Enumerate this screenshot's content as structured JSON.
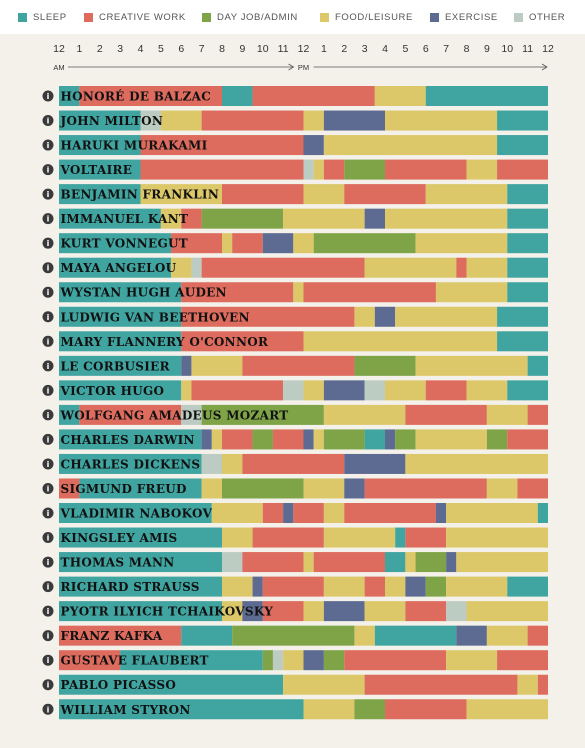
{
  "legend": [
    {
      "key": "sleep",
      "label": "SLEEP",
      "color": "#40a4a0"
    },
    {
      "key": "creative",
      "label": "CREATIVE WORK",
      "color": "#dd6b5e"
    },
    {
      "key": "dayjob",
      "label": "DAY JOB/ADMIN",
      "color": "#7ea447"
    },
    {
      "key": "food",
      "label": "FOOD/LEISURE",
      "color": "#dcc869"
    },
    {
      "key": "exercise",
      "label": "EXERCISE",
      "color": "#5d6a92"
    },
    {
      "key": "other",
      "label": "OTHER",
      "color": "#bcccc3"
    }
  ],
  "axis": {
    "tick_labels": [
      "12",
      "1",
      "2",
      "3",
      "4",
      "5",
      "6",
      "7",
      "8",
      "9",
      "10",
      "11",
      "12",
      "1",
      "2",
      "3",
      "4",
      "5",
      "6",
      "7",
      "8",
      "9",
      "10",
      "11",
      "12"
    ],
    "am_label": "AM",
    "pm_label": "PM"
  },
  "chart_data": {
    "type": "bar",
    "orientation": "horizontal-stacked-timeline",
    "x_unit": "hour of day",
    "xlim": [
      0,
      24
    ],
    "categories": [
      "sleep",
      "creative",
      "dayjob",
      "food",
      "exercise",
      "other"
    ],
    "rows": [
      {
        "name": "HONORÉ DE BALZAC",
        "segments": [
          [
            "sleep",
            0,
            1
          ],
          [
            "creative",
            1,
            8
          ],
          [
            "sleep",
            8,
            9.5
          ],
          [
            "creative",
            9.5,
            15.5
          ],
          [
            "food",
            15.5,
            18
          ],
          [
            "sleep",
            18,
            24
          ]
        ]
      },
      {
        "name": "JOHN MILTON",
        "segments": [
          [
            "sleep",
            0,
            4
          ],
          [
            "other",
            4,
            5
          ],
          [
            "food",
            5,
            7
          ],
          [
            "creative",
            7,
            12
          ],
          [
            "food",
            12,
            13
          ],
          [
            "exercise",
            13,
            16
          ],
          [
            "food",
            16,
            21.5
          ],
          [
            "sleep",
            21.5,
            24
          ]
        ]
      },
      {
        "name": "HARUKI MURAKAMI",
        "segments": [
          [
            "sleep",
            0,
            4
          ],
          [
            "creative",
            4,
            12
          ],
          [
            "exercise",
            12,
            13
          ],
          [
            "food",
            13,
            21.5
          ],
          [
            "sleep",
            21.5,
            24
          ]
        ]
      },
      {
        "name": "VOLTAIRE",
        "segments": [
          [
            "sleep",
            0,
            4
          ],
          [
            "creative",
            4,
            12
          ],
          [
            "other",
            12,
            12.5
          ],
          [
            "food",
            12.5,
            13
          ],
          [
            "creative",
            13,
            14
          ],
          [
            "dayjob",
            14,
            16
          ],
          [
            "creative",
            16,
            20
          ],
          [
            "food",
            20,
            21.5
          ],
          [
            "creative",
            21.5,
            24
          ]
        ]
      },
      {
        "name": "BENJAMIN FRANKLIN",
        "segments": [
          [
            "sleep",
            0,
            4
          ],
          [
            "food",
            4,
            8
          ],
          [
            "creative",
            8,
            12
          ],
          [
            "food",
            12,
            14
          ],
          [
            "creative",
            14,
            18
          ],
          [
            "food",
            18,
            22
          ],
          [
            "sleep",
            22,
            24
          ]
        ]
      },
      {
        "name": "IMMANUEL KANT",
        "segments": [
          [
            "sleep",
            0,
            5
          ],
          [
            "food",
            5,
            6
          ],
          [
            "creative",
            6,
            7
          ],
          [
            "dayjob",
            7,
            11
          ],
          [
            "food",
            11,
            15
          ],
          [
            "exercise",
            15,
            16
          ],
          [
            "food",
            16,
            22
          ],
          [
            "sleep",
            22,
            24
          ]
        ]
      },
      {
        "name": "KURT VONNEGUT",
        "segments": [
          [
            "sleep",
            0,
            5.5
          ],
          [
            "creative",
            5.5,
            8
          ],
          [
            "food",
            8,
            8.5
          ],
          [
            "creative",
            8.5,
            10
          ],
          [
            "exercise",
            10,
            11.5
          ],
          [
            "food",
            11.5,
            12.5
          ],
          [
            "dayjob",
            12.5,
            17.5
          ],
          [
            "food",
            17.5,
            22
          ],
          [
            "sleep",
            22,
            24
          ]
        ]
      },
      {
        "name": "MAYA ANGELOU",
        "segments": [
          [
            "sleep",
            0,
            5.5
          ],
          [
            "food",
            5.5,
            6.5
          ],
          [
            "other",
            6.5,
            7
          ],
          [
            "creative",
            7,
            15
          ],
          [
            "food",
            15,
            19.5
          ],
          [
            "creative",
            19.5,
            20
          ],
          [
            "food",
            20,
            22
          ],
          [
            "sleep",
            22,
            24
          ]
        ]
      },
      {
        "name": "WYSTAN HUGH AUDEN",
        "segments": [
          [
            "sleep",
            0,
            6
          ],
          [
            "creative",
            6,
            11.5
          ],
          [
            "food",
            11.5,
            12
          ],
          [
            "creative",
            12,
            18.5
          ],
          [
            "food",
            18.5,
            22
          ],
          [
            "sleep",
            22,
            24
          ]
        ]
      },
      {
        "name": "LUDWIG VAN BEETHOVEN",
        "segments": [
          [
            "sleep",
            0,
            6
          ],
          [
            "creative",
            6,
            14.5
          ],
          [
            "food",
            14.5,
            15.5
          ],
          [
            "exercise",
            15.5,
            16.5
          ],
          [
            "food",
            16.5,
            21.5
          ],
          [
            "sleep",
            21.5,
            24
          ]
        ]
      },
      {
        "name": "MARY FLANNERY O'CONNOR",
        "segments": [
          [
            "sleep",
            0,
            6
          ],
          [
            "creative",
            6,
            12
          ],
          [
            "food",
            12,
            21.5
          ],
          [
            "sleep",
            21.5,
            24
          ]
        ]
      },
      {
        "name": "LE CORBUSIER",
        "segments": [
          [
            "sleep",
            0,
            6
          ],
          [
            "exercise",
            6,
            6.5
          ],
          [
            "food",
            6.5,
            9
          ],
          [
            "creative",
            9,
            14.5
          ],
          [
            "dayjob",
            14.5,
            17.5
          ],
          [
            "food",
            17.5,
            23
          ],
          [
            "sleep",
            23,
            24
          ]
        ]
      },
      {
        "name": "VICTOR HUGO",
        "segments": [
          [
            "sleep",
            0,
            6
          ],
          [
            "food",
            6,
            6.5
          ],
          [
            "creative",
            6.5,
            11
          ],
          [
            "other",
            11,
            12
          ],
          [
            "food",
            12,
            13
          ],
          [
            "exercise",
            13,
            15
          ],
          [
            "other",
            15,
            16
          ],
          [
            "food",
            16,
            18
          ],
          [
            "creative",
            18,
            20
          ],
          [
            "food",
            20,
            22
          ],
          [
            "sleep",
            22,
            24
          ]
        ]
      },
      {
        "name": "WOLFGANG AMADEUS MOZART",
        "segments": [
          [
            "sleep",
            0,
            1
          ],
          [
            "creative",
            1,
            6
          ],
          [
            "other",
            6,
            7
          ],
          [
            "dayjob",
            7,
            13
          ],
          [
            "food",
            13,
            17
          ],
          [
            "creative",
            17,
            21
          ],
          [
            "food",
            21,
            23
          ],
          [
            "creative",
            23,
            24
          ]
        ]
      },
      {
        "name": "CHARLES DARWIN",
        "segments": [
          [
            "sleep",
            0,
            7
          ],
          [
            "exercise",
            7,
            7.5
          ],
          [
            "food",
            7.5,
            8
          ],
          [
            "creative",
            8,
            9.5
          ],
          [
            "dayjob",
            9.5,
            10.5
          ],
          [
            "creative",
            10.5,
            12
          ],
          [
            "exercise",
            12,
            12.5
          ],
          [
            "food",
            12.5,
            13
          ],
          [
            "dayjob",
            13,
            15
          ],
          [
            "sleep",
            15,
            16
          ],
          [
            "exercise",
            16,
            16.5
          ],
          [
            "dayjob",
            16.5,
            17.5
          ],
          [
            "food",
            17.5,
            21
          ],
          [
            "dayjob",
            21,
            22
          ],
          [
            "creative",
            22,
            24
          ]
        ]
      },
      {
        "name": "CHARLES DICKENS",
        "segments": [
          [
            "sleep",
            0,
            7
          ],
          [
            "other",
            7,
            8
          ],
          [
            "food",
            8,
            9
          ],
          [
            "creative",
            9,
            14
          ],
          [
            "exercise",
            14,
            17
          ],
          [
            "food",
            17,
            24
          ]
        ]
      },
      {
        "name": "SIGMUND FREUD",
        "segments": [
          [
            "creative",
            0,
            1
          ],
          [
            "sleep",
            1,
            7
          ],
          [
            "food",
            7,
            8
          ],
          [
            "dayjob",
            8,
            12
          ],
          [
            "food",
            12,
            14
          ],
          [
            "exercise",
            14,
            15
          ],
          [
            "creative",
            15,
            21
          ],
          [
            "food",
            21,
            22.5
          ],
          [
            "creative",
            22.5,
            24
          ]
        ]
      },
      {
        "name": "VLADIMIR NABOKOV",
        "segments": [
          [
            "sleep",
            0,
            7.5
          ],
          [
            "food",
            7.5,
            10
          ],
          [
            "creative",
            10,
            11
          ],
          [
            "exercise",
            11,
            11.5
          ],
          [
            "creative",
            11.5,
            13
          ],
          [
            "food",
            13,
            14
          ],
          [
            "creative",
            14,
            18.5
          ],
          [
            "exercise",
            18.5,
            19
          ],
          [
            "food",
            19,
            23.5
          ],
          [
            "sleep",
            23.5,
            24
          ]
        ]
      },
      {
        "name": "KINGSLEY AMIS",
        "segments": [
          [
            "sleep",
            0,
            8
          ],
          [
            "food",
            8,
            9.5
          ],
          [
            "creative",
            9.5,
            13
          ],
          [
            "food",
            13,
            16.5
          ],
          [
            "sleep",
            16.5,
            17
          ],
          [
            "creative",
            17,
            19
          ],
          [
            "food",
            19,
            24
          ]
        ]
      },
      {
        "name": "THOMAS MANN",
        "segments": [
          [
            "sleep",
            0,
            8
          ],
          [
            "other",
            8,
            9
          ],
          [
            "creative",
            9,
            12
          ],
          [
            "food",
            12,
            12.5
          ],
          [
            "creative",
            12.5,
            16
          ],
          [
            "sleep",
            16,
            17
          ],
          [
            "food",
            17,
            17.5
          ],
          [
            "dayjob",
            17.5,
            19
          ],
          [
            "exercise",
            19,
            19.5
          ],
          [
            "food",
            19.5,
            24
          ]
        ]
      },
      {
        "name": "RICHARD STRAUSS",
        "segments": [
          [
            "sleep",
            0,
            8
          ],
          [
            "food",
            8,
            9.5
          ],
          [
            "exercise",
            9.5,
            10
          ],
          [
            "creative",
            10,
            13
          ],
          [
            "food",
            13,
            15
          ],
          [
            "creative",
            15,
            16
          ],
          [
            "food",
            16,
            17
          ],
          [
            "exercise",
            17,
            18
          ],
          [
            "dayjob",
            18,
            19
          ],
          [
            "food",
            19,
            22
          ],
          [
            "sleep",
            22,
            24
          ]
        ]
      },
      {
        "name": "PYOTR ILYICH TCHAIKOVSKY",
        "segments": [
          [
            "sleep",
            0,
            8
          ],
          [
            "food",
            8,
            9
          ],
          [
            "exercise",
            9,
            10
          ],
          [
            "creative",
            10,
            12
          ],
          [
            "food",
            12,
            13
          ],
          [
            "exercise",
            13,
            15
          ],
          [
            "food",
            15,
            17
          ],
          [
            "creative",
            17,
            19
          ],
          [
            "other",
            19,
            20
          ],
          [
            "food",
            20,
            24
          ]
        ]
      },
      {
        "name": "FRANZ KAFKA",
        "segments": [
          [
            "creative",
            0,
            6
          ],
          [
            "sleep",
            6,
            8.5
          ],
          [
            "dayjob",
            8.5,
            14.5
          ],
          [
            "food",
            14.5,
            15.5
          ],
          [
            "sleep",
            15.5,
            19.5
          ],
          [
            "exercise",
            19.5,
            21
          ],
          [
            "food",
            21,
            23
          ],
          [
            "creative",
            23,
            24
          ]
        ]
      },
      {
        "name": "GUSTAVE FLAUBERT",
        "segments": [
          [
            "creative",
            0,
            3
          ],
          [
            "sleep",
            3,
            10
          ],
          [
            "dayjob",
            10,
            10.5
          ],
          [
            "other",
            10.5,
            11
          ],
          [
            "food",
            11,
            12
          ],
          [
            "exercise",
            12,
            13
          ],
          [
            "dayjob",
            13,
            14
          ],
          [
            "creative",
            14,
            19
          ],
          [
            "food",
            19,
            21.5
          ],
          [
            "creative",
            21.5,
            24
          ]
        ]
      },
      {
        "name": "PABLO PICASSO",
        "segments": [
          [
            "sleep",
            0,
            11
          ],
          [
            "food",
            11,
            15
          ],
          [
            "creative",
            15,
            22.5
          ],
          [
            "food",
            22.5,
            23.5
          ],
          [
            "creative",
            23.5,
            24
          ]
        ]
      },
      {
        "name": "WILLIAM STYRON",
        "segments": [
          [
            "sleep",
            0,
            12
          ],
          [
            "food",
            12,
            14.5
          ],
          [
            "dayjob",
            14.5,
            16
          ],
          [
            "creative",
            16,
            20
          ],
          [
            "food",
            20,
            24
          ]
        ]
      }
    ]
  }
}
